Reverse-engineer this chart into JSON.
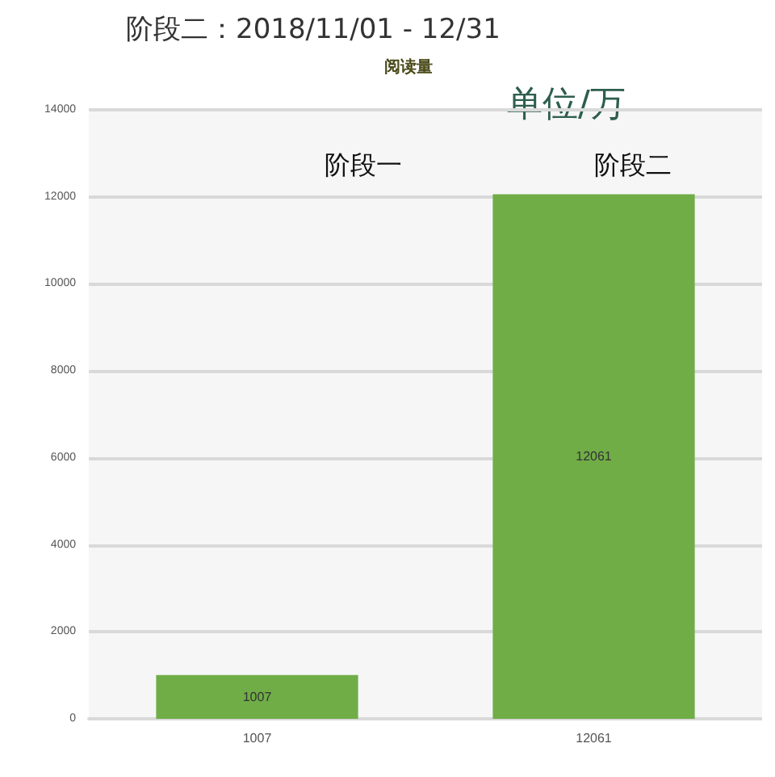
{
  "chart_data": {
    "type": "bar",
    "title": "阅读量",
    "categories": [
      "1007",
      "12061"
    ],
    "values": [
      1007,
      12061
    ],
    "color": "#70ad47",
    "ylim": [
      0,
      14000
    ],
    "yticks": [
      0,
      2000,
      4000,
      6000,
      8000,
      10000,
      12000,
      14000
    ],
    "grid": "y",
    "data_labels": true,
    "annotations": [
      "阶段二：2018/11/01 - 12/31",
      "单位/万",
      "阶段一",
      "阶段二"
    ]
  }
}
